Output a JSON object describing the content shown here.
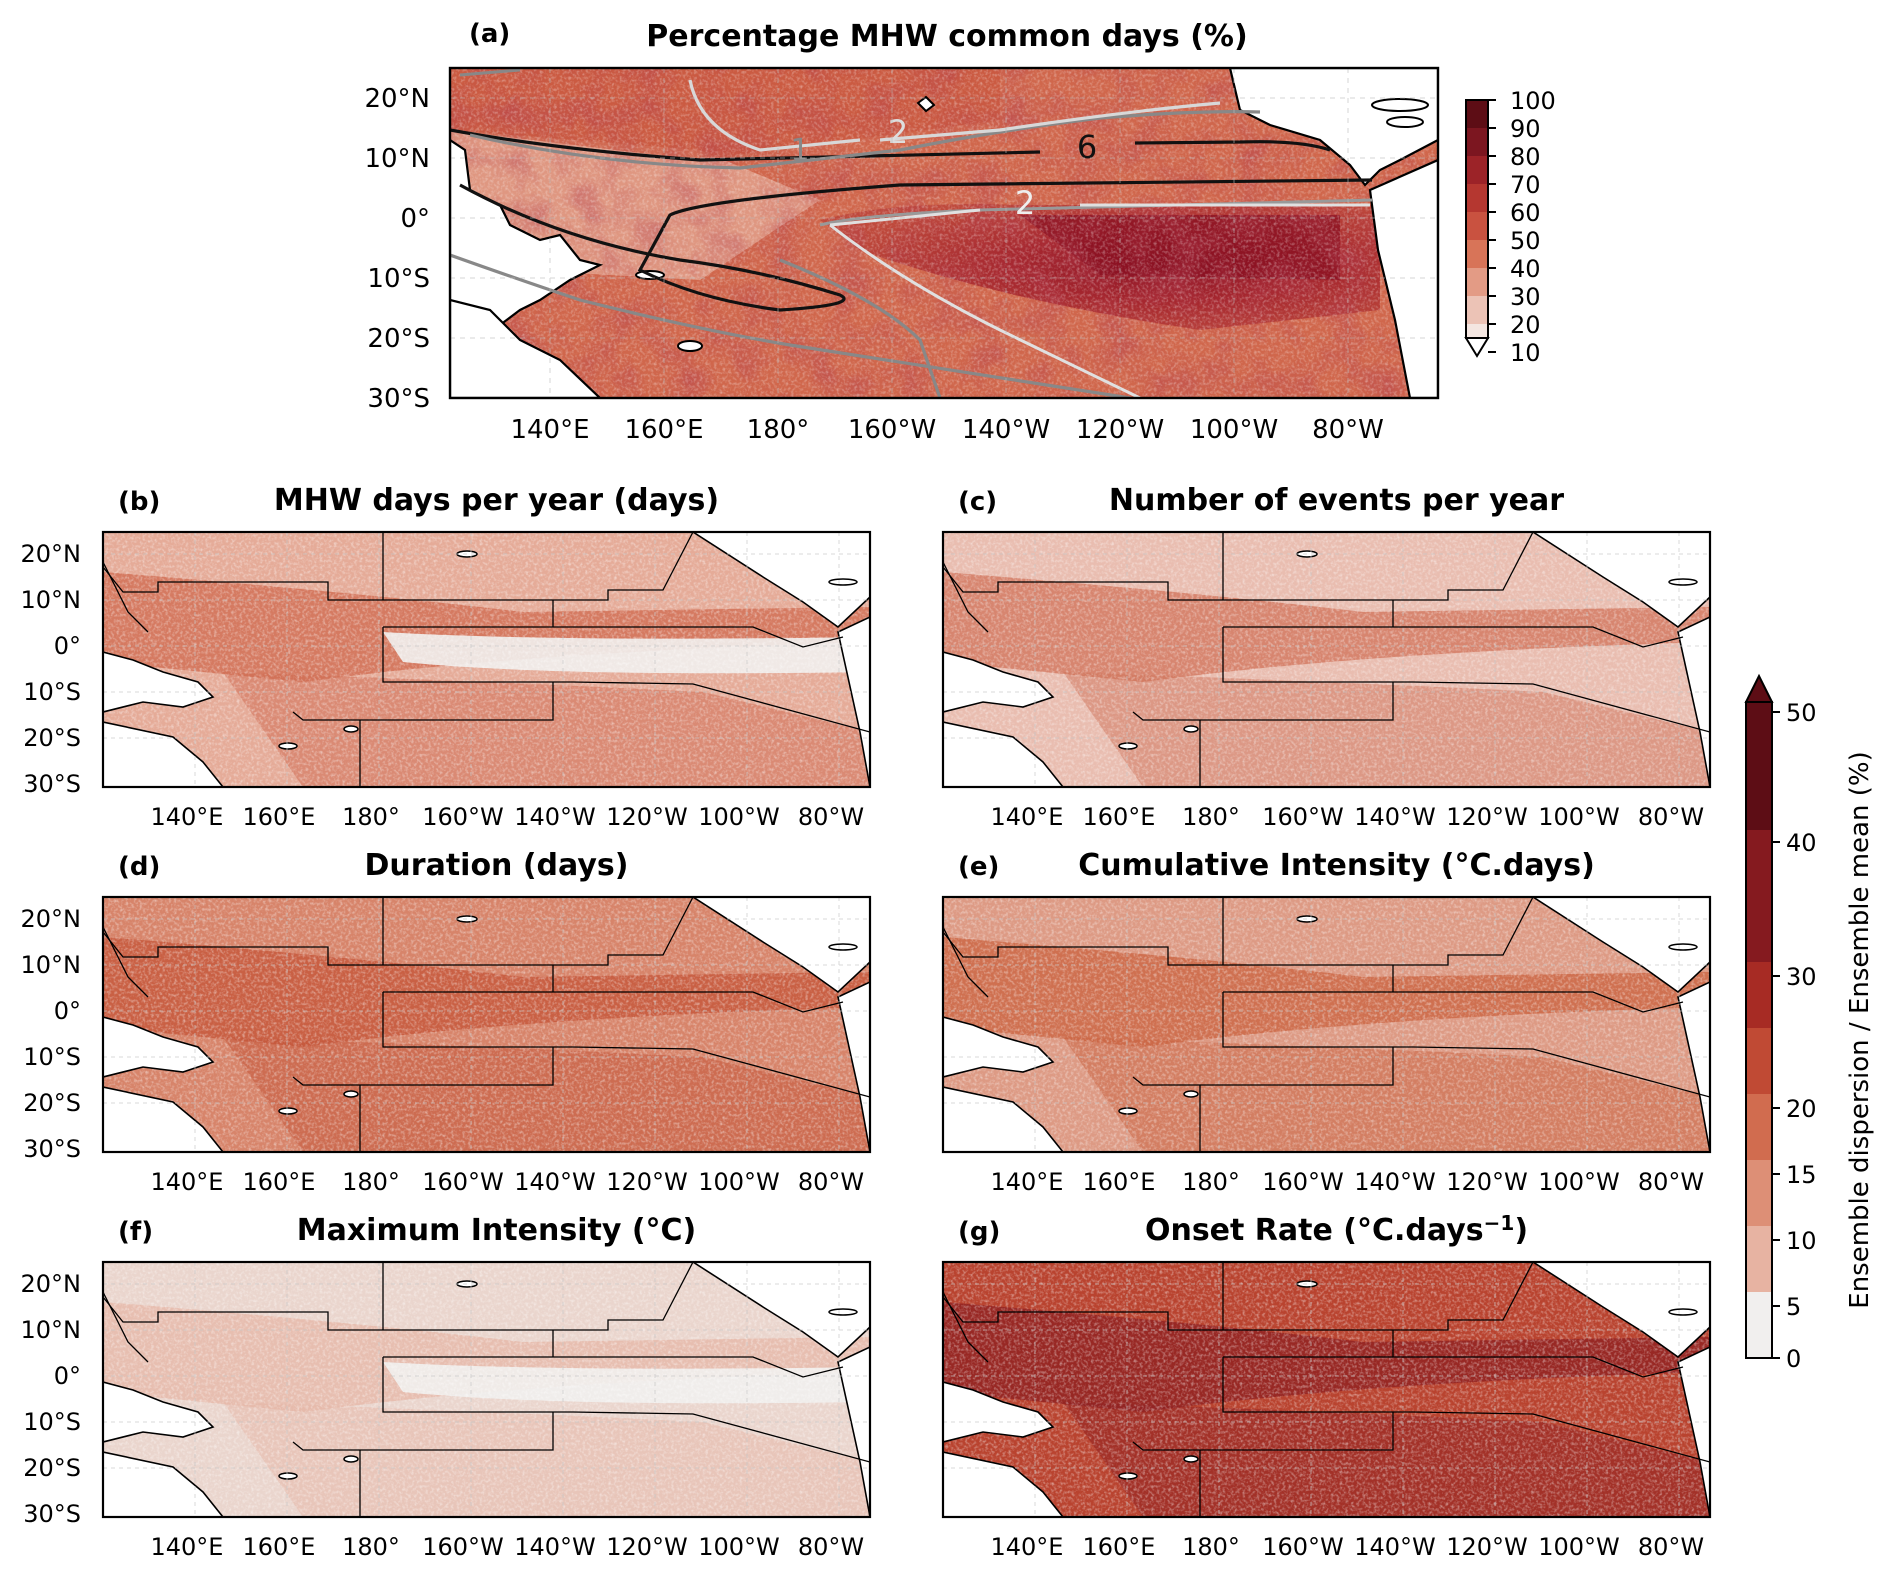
{
  "figure": {
    "panel_a": {
      "label": "(a)",
      "title": "Percentage MHW common days (%)",
      "colorbar_ticks": [
        "100",
        "90",
        "80",
        "70",
        "60",
        "50",
        "40",
        "30",
        "20",
        "10"
      ],
      "contour_labels": [
        "1",
        "2",
        "6",
        "2"
      ],
      "lat_ticks": [
        "20°N",
        "10°N",
        "0°",
        "10°S",
        "20°S",
        "30°S"
      ],
      "lon_ticks": [
        "140°E",
        "160°E",
        "180°",
        "160°W",
        "140°W",
        "120°W",
        "100°W",
        "80°W"
      ]
    },
    "panels": [
      {
        "id": "b",
        "label": "(b)",
        "title": "MHW days per year (days)"
      },
      {
        "id": "c",
        "label": "(c)",
        "title": "Number of events per year"
      },
      {
        "id": "d",
        "label": "(d)",
        "title": "Duration (days)"
      },
      {
        "id": "e",
        "label": "(e)",
        "title": "Cumulative Intensity (°C.days)"
      },
      {
        "id": "f",
        "label": "(f)",
        "title": "Maximum Intensity (°C)"
      },
      {
        "id": "g",
        "label": "(g)",
        "title": "Onset Rate (°C.days"
      }
    ],
    "onset_superscript": "−1",
    "onset_suffix": ")",
    "lat_ticks_small": [
      "20°N",
      "10°N",
      "0°",
      "10°S",
      "20°S",
      "30°S"
    ],
    "lon_ticks_small": [
      "140°E",
      "160°E",
      "180°",
      "160°W",
      "140°W",
      "120°W",
      "100°W",
      "80°W"
    ],
    "colorbar_right": {
      "label": "Ensemble dispersion / Ensemble mean (%)",
      "ticks": [
        "50",
        "40",
        "30",
        "20",
        "15",
        "10",
        "5",
        "0"
      ]
    },
    "colors": {
      "ocean_a": "#cf6a4f",
      "ocean_a_hot": "#a8202e",
      "land": "#ffffff",
      "scale": [
        "#f1efee",
        "#efd5cd",
        "#e7b3a2",
        "#dd8f76",
        "#d16c4f",
        "#c04a34",
        "#a72b24",
        "#851a1f",
        "#5d0d15"
      ]
    }
  }
}
